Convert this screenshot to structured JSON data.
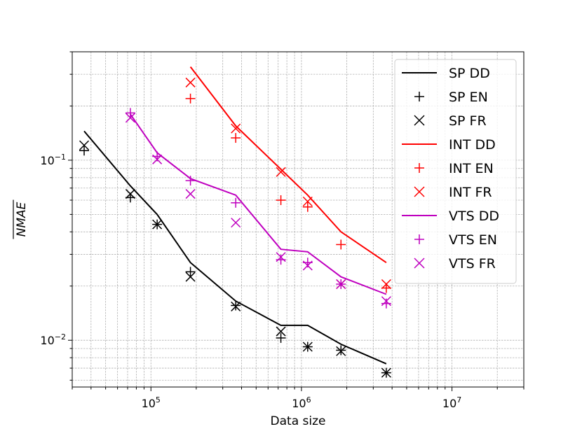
{
  "chart_data": {
    "type": "line",
    "xscale": "log",
    "yscale": "log",
    "xlim": [
      30000,
      30000000
    ],
    "ylim": [
      0.0055,
      0.4
    ],
    "xlabel": "Data size",
    "ylabel": "NMAE",
    "x_ticks": [
      {
        "value": 100000,
        "base": "10",
        "exp": "5"
      },
      {
        "value": 1000000,
        "base": "10",
        "exp": "6"
      },
      {
        "value": 10000000,
        "base": "10",
        "exp": "7"
      }
    ],
    "y_ticks": [
      {
        "value": 0.01,
        "base": "10",
        "exp": "−2"
      },
      {
        "value": 0.1,
        "base": "10",
        "exp": "−1"
      }
    ],
    "grid": true,
    "legend_position": "upper-right",
    "series": [
      {
        "name": "SP DD",
        "kind": "line",
        "color": "#000000",
        "x": [
          36000,
          73000,
          110000,
          183000,
          366000,
          730000,
          1100000,
          1830000,
          3660000
        ],
        "y": [
          0.145,
          0.072,
          0.05,
          0.027,
          0.0165,
          0.0121,
          0.0121,
          0.0095,
          0.0074
        ]
      },
      {
        "name": "SP EN",
        "kind": "plus",
        "color": "#000000",
        "x": [
          36000,
          73000,
          110000,
          183000,
          366000,
          730000,
          1100000,
          1830000,
          3660000
        ],
        "y": [
          0.113,
          0.062,
          0.044,
          0.024,
          0.0156,
          0.0103,
          0.0092,
          0.0088,
          0.0066
        ]
      },
      {
        "name": "SP FR",
        "kind": "x",
        "color": "#000000",
        "x": [
          36000,
          73000,
          110000,
          183000,
          366000,
          730000,
          1100000,
          1830000,
          3660000
        ],
        "y": [
          0.121,
          0.065,
          0.044,
          0.0225,
          0.0154,
          0.0112,
          0.0092,
          0.0087,
          0.0066
        ]
      },
      {
        "name": "INT DD",
        "kind": "line",
        "color": "#ff0000",
        "x": [
          183000,
          366000,
          730000,
          1100000,
          1830000,
          3660000
        ],
        "y": [
          0.33,
          0.155,
          0.089,
          0.064,
          0.04,
          0.027
        ]
      },
      {
        "name": "INT EN",
        "kind": "plus",
        "color": "#ff0000",
        "x": [
          183000,
          366000,
          730000,
          1100000,
          1830000,
          3660000
        ],
        "y": [
          0.22,
          0.133,
          0.06,
          0.055,
          0.034,
          0.0195
        ]
      },
      {
        "name": "INT FR",
        "kind": "x",
        "color": "#ff0000",
        "x": [
          183000,
          366000,
          730000,
          1100000,
          1830000,
          3660000
        ],
        "y": [
          0.27,
          0.15,
          0.086,
          0.059,
          0.0205,
          0.0205
        ]
      },
      {
        "name": "VTS DD",
        "kind": "line",
        "color": "#bf00bf",
        "x": [
          73000,
          110000,
          183000,
          366000,
          730000,
          1100000,
          1830000,
          3660000
        ],
        "y": [
          0.18,
          0.11,
          0.079,
          0.064,
          0.032,
          0.031,
          0.0225,
          0.018
        ]
      },
      {
        "name": "VTS EN",
        "kind": "plus",
        "color": "#bf00bf",
        "x": [
          73000,
          110000,
          183000,
          366000,
          730000,
          1100000,
          1830000,
          3660000
        ],
        "y": [
          0.183,
          0.105,
          0.077,
          0.058,
          0.028,
          0.027,
          0.0205,
          0.016
        ]
      },
      {
        "name": "VTS FR",
        "kind": "x",
        "color": "#bf00bf",
        "x": [
          73000,
          110000,
          183000,
          366000,
          730000,
          1100000,
          1830000,
          3660000
        ],
        "y": [
          0.172,
          0.101,
          0.065,
          0.045,
          0.029,
          0.026,
          0.0205,
          0.0165
        ]
      }
    ]
  }
}
